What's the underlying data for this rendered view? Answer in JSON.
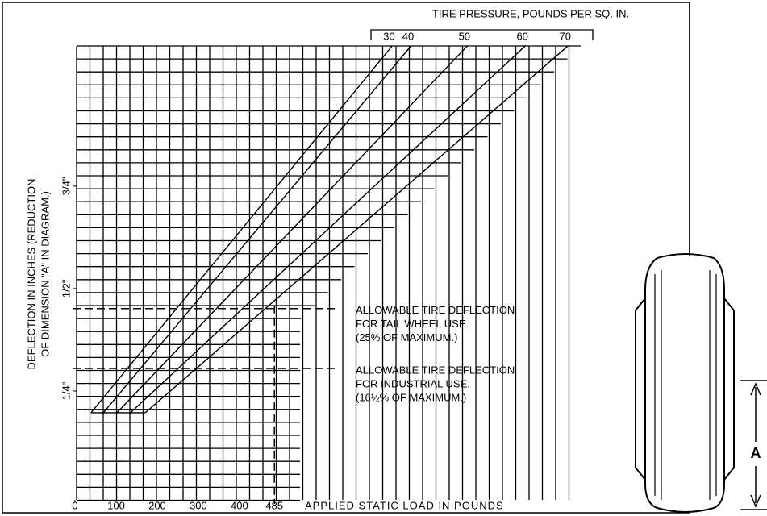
{
  "chart_data": {
    "type": "line",
    "legend_title": "TIRE PRESSURE, POUNDS PER SQ. IN.",
    "xlabel": "APPLIED STATIC LOAD IN POUNDS",
    "ylabel": [
      "DEFLECTION IN INCHES (REDUCTION",
      "OF DIMENSION \"A\" IN DIAGRAM.)"
    ],
    "series": [
      {
        "name": "30",
        "color": "#000000",
        "x": [
          39,
          772
        ],
        "values": [
          0.197,
          1.093
        ]
      },
      {
        "name": "40",
        "color": "#000000",
        "x": [
          69,
          818
        ],
        "values": [
          0.197,
          1.093
        ]
      },
      {
        "name": "50",
        "color": "#000000",
        "x": [
          102,
          955
        ],
        "values": [
          0.197,
          1.093
        ]
      },
      {
        "name": "60",
        "color": "#000000",
        "x": [
          135,
          1096
        ],
        "values": [
          0.197,
          1.093
        ]
      },
      {
        "name": "70",
        "color": "#000000",
        "x": [
          171,
          1200
        ],
        "values": [
          0.197,
          1.093
        ]
      }
    ],
    "xlim": [
      0,
      1230
    ],
    "ylim": [
      0,
      1.1
    ],
    "xticks": [
      0,
      100,
      200,
      300,
      400,
      485
    ],
    "yticks": [
      {
        "value": 0.25,
        "label": "1/4\""
      },
      {
        "value": 0.5,
        "label": "1/2\""
      },
      {
        "value": 0.75,
        "label": "3/4\""
      }
    ],
    "reference_lines": [
      {
        "value": 0.451,
        "label": [
          "ALLOWABLE TIRE DEFLECTION",
          "FOR TAIL WHEEL USE.",
          "(25% OF MAXIMUM.)"
        ]
      },
      {
        "value": 0.305,
        "label": [
          "ALLOWABLE TIRE DEFLECTION",
          "FOR INDUSTRIAL USE.",
          "(16½% OF MAXIMUM.)"
        ]
      }
    ],
    "vertical_line": 485,
    "dimension_label": "A"
  }
}
